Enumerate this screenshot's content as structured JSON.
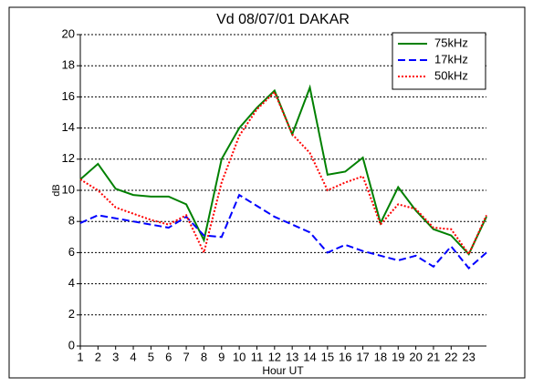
{
  "chart_data": {
    "type": "line",
    "title": "Vd  08/07/01 DAKAR",
    "xlabel": "Hour UT",
    "ylabel": "dB",
    "x": [
      1,
      2,
      3,
      4,
      5,
      6,
      7,
      8,
      9,
      10,
      11,
      12,
      13,
      14,
      15,
      16,
      17,
      18,
      19,
      20,
      21,
      22,
      23,
      24
    ],
    "series": [
      {
        "name": "75kHz",
        "color": "#008000",
        "dash": "solid",
        "values": [
          10.7,
          11.7,
          10.1,
          9.7,
          9.6,
          9.6,
          9.1,
          6.8,
          12.0,
          14.0,
          15.3,
          16.4,
          13.6,
          16.6,
          11.0,
          11.2,
          12.1,
          7.9,
          10.2,
          8.7,
          7.5,
          7.1,
          5.9,
          8.3
        ]
      },
      {
        "name": "17kHz",
        "color": "#0000ff",
        "dash": "dashed",
        "values": [
          7.9,
          8.4,
          8.2,
          8.0,
          7.8,
          7.6,
          8.3,
          7.1,
          7.0,
          9.7,
          9.0,
          8.3,
          7.8,
          7.3,
          6.0,
          6.5,
          6.1,
          5.8,
          5.5,
          5.8,
          5.1,
          6.4,
          5.0,
          6.0
        ]
      },
      {
        "name": "50kHz",
        "color": "#ff0000",
        "dash": "dotted",
        "values": [
          10.7,
          10.0,
          8.9,
          8.5,
          8.1,
          7.8,
          8.4,
          6.0,
          10.5,
          13.5,
          15.2,
          16.3,
          13.6,
          12.4,
          10.0,
          10.5,
          10.9,
          7.8,
          9.1,
          8.8,
          7.6,
          7.5,
          5.9,
          8.4
        ]
      }
    ],
    "xlim": [
      1,
      24
    ],
    "xticks": [
      1,
      2,
      3,
      4,
      5,
      6,
      7,
      8,
      9,
      10,
      11,
      12,
      13,
      14,
      15,
      16,
      17,
      18,
      19,
      20,
      21,
      22,
      23
    ],
    "ylim": [
      0,
      20
    ],
    "yticks": [
      0,
      2,
      4,
      6,
      8,
      10,
      12,
      14,
      16,
      18,
      20
    ],
    "grid": true,
    "legend": "upper right"
  }
}
